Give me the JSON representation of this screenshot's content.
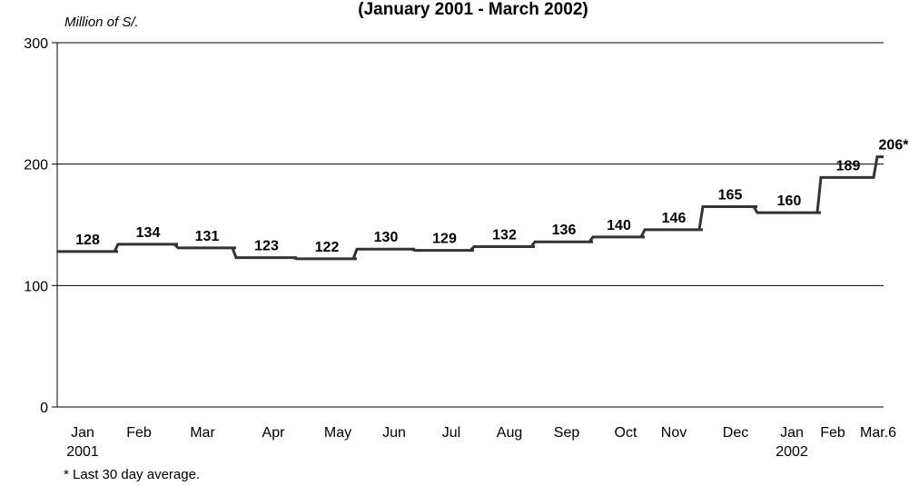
{
  "chart_data": {
    "type": "line",
    "title": "(January 2001 - March 2002)",
    "ylabel": "Million of S/.",
    "ylim": [
      0,
      300
    ],
    "yticks": [
      "0",
      "100",
      "200",
      "300"
    ],
    "grid": "horizontal",
    "categories": [
      {
        "line1": "Jan",
        "line2": "2001"
      },
      {
        "line1": "Feb",
        "line2": ""
      },
      {
        "line1": "Mar",
        "line2": ""
      },
      {
        "line1": "Apr",
        "line2": ""
      },
      {
        "line1": "May",
        "line2": ""
      },
      {
        "line1": "Jun",
        "line2": ""
      },
      {
        "line1": "Jul",
        "line2": ""
      },
      {
        "line1": "Aug",
        "line2": ""
      },
      {
        "line1": "Sep",
        "line2": ""
      },
      {
        "line1": "Oct",
        "line2": ""
      },
      {
        "line1": "Nov",
        "line2": ""
      },
      {
        "line1": "Dec",
        "line2": ""
      },
      {
        "line1": "Jan",
        "line2": "2002"
      },
      {
        "line1": "Feb",
        "line2": ""
      },
      {
        "line1": "Mar.6",
        "line2": ""
      }
    ],
    "values": [
      128,
      134,
      131,
      123,
      122,
      130,
      129,
      132,
      136,
      140,
      146,
      165,
      160,
      189,
      206
    ],
    "data_labels": [
      "128",
      "134",
      "131",
      "123",
      "122",
      "130",
      "129",
      "132",
      "136",
      "140",
      "146",
      "165",
      "160",
      "189",
      "206*"
    ],
    "line_color": "#333333",
    "footnote": "* Last 30 day average."
  }
}
